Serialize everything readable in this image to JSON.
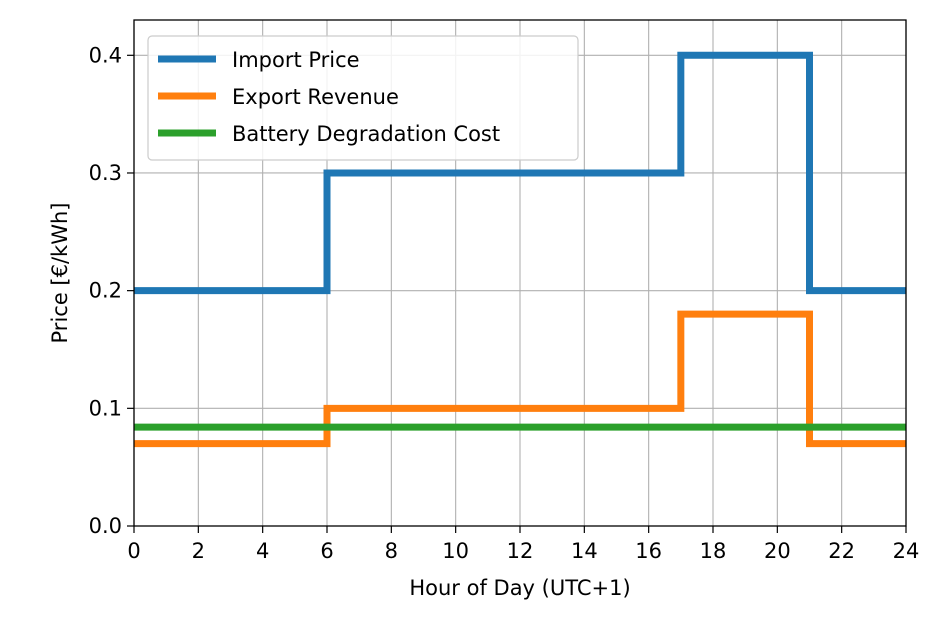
{
  "chart_data": {
    "type": "line",
    "step": "post",
    "xlabel": "Hour of Day (UTC+1)",
    "ylabel": "Price [€/kWh]",
    "xlim": [
      0,
      24
    ],
    "ylim": [
      0,
      0.43
    ],
    "xticks": [
      0,
      2,
      4,
      6,
      8,
      10,
      12,
      14,
      16,
      18,
      20,
      22,
      24
    ],
    "yticks": [
      0.0,
      0.1,
      0.2,
      0.3,
      0.4
    ],
    "ytick_labels": [
      "0.0",
      "0.1",
      "0.2",
      "0.3",
      "0.4"
    ],
    "grid": true,
    "legend_position": "top-left",
    "series": [
      {
        "name": "Import Price",
        "color": "#1f77b4",
        "x": [
          0,
          6,
          17,
          21,
          24
        ],
        "y": [
          0.2,
          0.3,
          0.4,
          0.2,
          0.2
        ]
      },
      {
        "name": "Export Revenue",
        "color": "#ff7f0e",
        "x": [
          0,
          6,
          17,
          21,
          24
        ],
        "y": [
          0.07,
          0.1,
          0.18,
          0.07,
          0.07
        ]
      },
      {
        "name": "Battery Degradation Cost",
        "color": "#2ca02c",
        "x": [
          0,
          24
        ],
        "y": [
          0.084,
          0.084
        ]
      }
    ]
  }
}
